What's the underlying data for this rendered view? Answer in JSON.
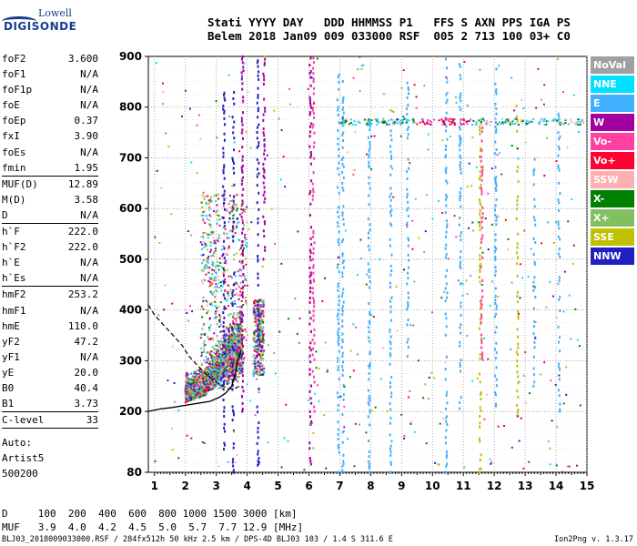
{
  "logo": {
    "top": "Lowell",
    "bottom": "DIGISONDE"
  },
  "header": {
    "line1": "Stati YYYY DAY   DDD HHMMSS P1   FFS S AXN PPS IGA PS",
    "line2": "Belem 2018 Jan09 009 033000 RSF  005 2 713 100 03+ C0"
  },
  "params": [
    {
      "name": "foF2",
      "value": "3.600"
    },
    {
      "name": "foF1",
      "value": "N/A"
    },
    {
      "name": "foF1p",
      "value": "N/A"
    },
    {
      "name": "foE",
      "value": "N/A"
    },
    {
      "name": "foEp",
      "value": "0.37"
    },
    {
      "name": "fxI",
      "value": "3.90"
    },
    {
      "name": "foEs",
      "value": "N/A"
    },
    {
      "name": "fmin",
      "value": "1.95"
    },
    {
      "sep": true
    },
    {
      "name": "MUF(D)",
      "value": "12.89"
    },
    {
      "name": "M(D)",
      "value": "3.58"
    },
    {
      "name": "D",
      "value": "N/A"
    },
    {
      "sep": true
    },
    {
      "name": "h`F",
      "value": "222.0"
    },
    {
      "name": "h`F2",
      "value": "222.0"
    },
    {
      "name": "h`E",
      "value": "N/A"
    },
    {
      "name": "h`Es",
      "value": "N/A"
    },
    {
      "sep": true
    },
    {
      "name": "hmF2",
      "value": "253.2"
    },
    {
      "name": "hmF1",
      "value": "N/A"
    },
    {
      "name": "hmE",
      "value": "110.0"
    },
    {
      "name": "yF2",
      "value": "47.2"
    },
    {
      "name": "yF1",
      "value": "N/A"
    },
    {
      "name": "yE",
      "value": "20.0"
    },
    {
      "name": "B0",
      "value": "40.4"
    },
    {
      "name": "B1",
      "value": "3.73"
    },
    {
      "sep": true
    },
    {
      "name": "C-level",
      "value": "33"
    },
    {
      "sep": true
    }
  ],
  "auto": {
    "line1": "Auto:",
    "line2": "Artist5",
    "line3": "500200"
  },
  "legend": [
    {
      "label": "NoVal",
      "color": "#a0a0a0"
    },
    {
      "label": "NNE",
      "color": "#00e0ff"
    },
    {
      "label": "E",
      "color": "#40b0ff"
    },
    {
      "label": "W",
      "color": "#a000a0"
    },
    {
      "label": "Vo-",
      "color": "#ff40a0"
    },
    {
      "label": "Vo+",
      "color": "#ff0030"
    },
    {
      "label": "SSW",
      "color": "#ffb0b0"
    },
    {
      "label": "X-",
      "color": "#008000"
    },
    {
      "label": "X+",
      "color": "#80c060"
    },
    {
      "label": "SSE",
      "color": "#c0c000"
    },
    {
      "label": "NNW",
      "color": "#2020c0"
    }
  ],
  "chart_data": {
    "type": "scatter",
    "title": "",
    "xlabel": "",
    "ylabel": "",
    "xlim": [
      0.8,
      15
    ],
    "ylim": [
      80,
      900
    ],
    "xticks": [
      1,
      2,
      3,
      4,
      5,
      6,
      7,
      8,
      9,
      10,
      11,
      12,
      13,
      14,
      15
    ],
    "yticks": [
      80,
      200,
      300,
      400,
      500,
      600,
      700,
      800,
      900
    ],
    "grid": true,
    "traces": {
      "solid": {
        "x": [
          0.8,
          1.2,
          1.6,
          2.0,
          2.4,
          2.8,
          3.1,
          3.3,
          3.5,
          3.6,
          3.7,
          3.8
        ],
        "y": [
          200,
          205,
          208,
          212,
          216,
          220,
          228,
          236,
          250,
          270,
          300,
          320
        ]
      },
      "dashed": {
        "x": [
          0.8,
          1.0,
          1.3,
          1.6,
          1.9,
          2.1,
          2.4,
          2.7,
          3.0,
          3.2,
          3.4,
          3.6,
          3.75
        ],
        "y": [
          410,
          390,
          370,
          350,
          330,
          310,
          290,
          272,
          258,
          250,
          245,
          245,
          250
        ]
      }
    }
  },
  "table": {
    "row1": "D     100  200  400  600  800 1000 1500 3000 [km]",
    "row2": "MUF   3.9  4.0  4.2  4.5  5.0  5.7  7.7 12.9 [MHz]"
  },
  "footer": {
    "left": "BLJ03_2018009033000.RSF / 284fx512h 50 kHz 2.5 km / DPS-4D BLJ03 103 / 1.4 S 311.6 E",
    "right": "Ion2Png v. 1.3.17"
  }
}
